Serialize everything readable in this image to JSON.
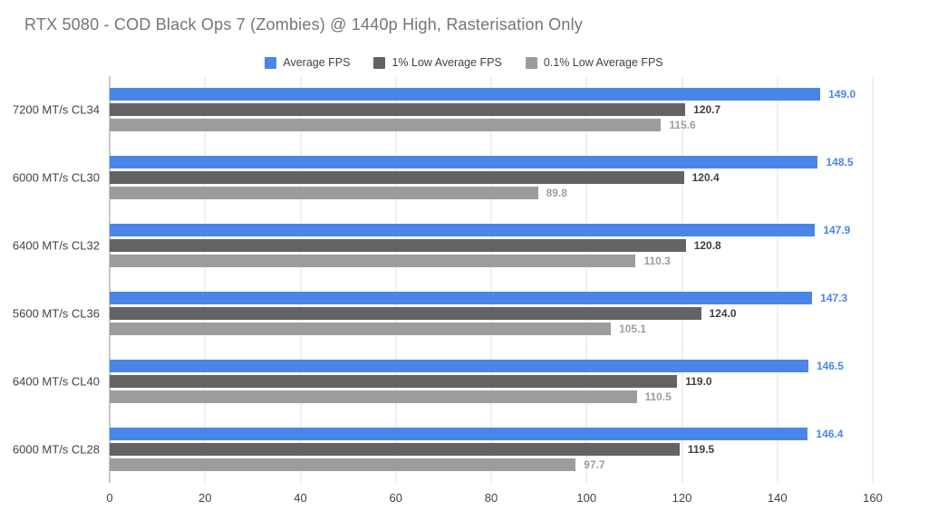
{
  "title": "RTX 5080 - COD Black Ops 7 (Zombies) @ 1440p High, Rasterisation Only",
  "colors": {
    "background": "#ffffff",
    "title_text": "#757575",
    "legend_text": "#424242",
    "category_label": "#424242",
    "tick_label": "#424242",
    "gridline": "#e0e0e0",
    "axis_line": "#8f8f8f"
  },
  "chart_data": {
    "type": "bar",
    "orientation": "horizontal",
    "title": "RTX 5080 - COD Black Ops 7 (Zombies) @ 1440p High, Rasterisation Only",
    "xlabel": "",
    "ylabel": "",
    "xlim": [
      0,
      160
    ],
    "xticks": [
      0,
      20,
      40,
      60,
      80,
      100,
      120,
      140,
      160
    ],
    "grid": true,
    "legend_position": "top-center",
    "value_label_decimals": 1,
    "categories": [
      "7200 MT/s CL34",
      "6000 MT/s CL30",
      "6400 MT/s CL32",
      "5600 MT/s CL36",
      "6400 MT/s CL40",
      "6000 MT/s CL28"
    ],
    "series": [
      {
        "name": "Average FPS",
        "color": "#4a86e8",
        "label_color": "#4a86e8",
        "values": [
          149.0,
          148.5,
          147.9,
          147.3,
          146.5,
          146.4
        ]
      },
      {
        "name": "1% Low Average FPS",
        "color": "#636363",
        "label_color": "#3f3f3f",
        "values": [
          120.7,
          120.4,
          120.8,
          124.0,
          119.0,
          119.5
        ]
      },
      {
        "name": "0.1% Low Average FPS",
        "color": "#9c9c9c",
        "label_color": "#9e9e9e",
        "values": [
          115.6,
          89.8,
          110.3,
          105.1,
          110.5,
          97.7
        ]
      }
    ]
  }
}
